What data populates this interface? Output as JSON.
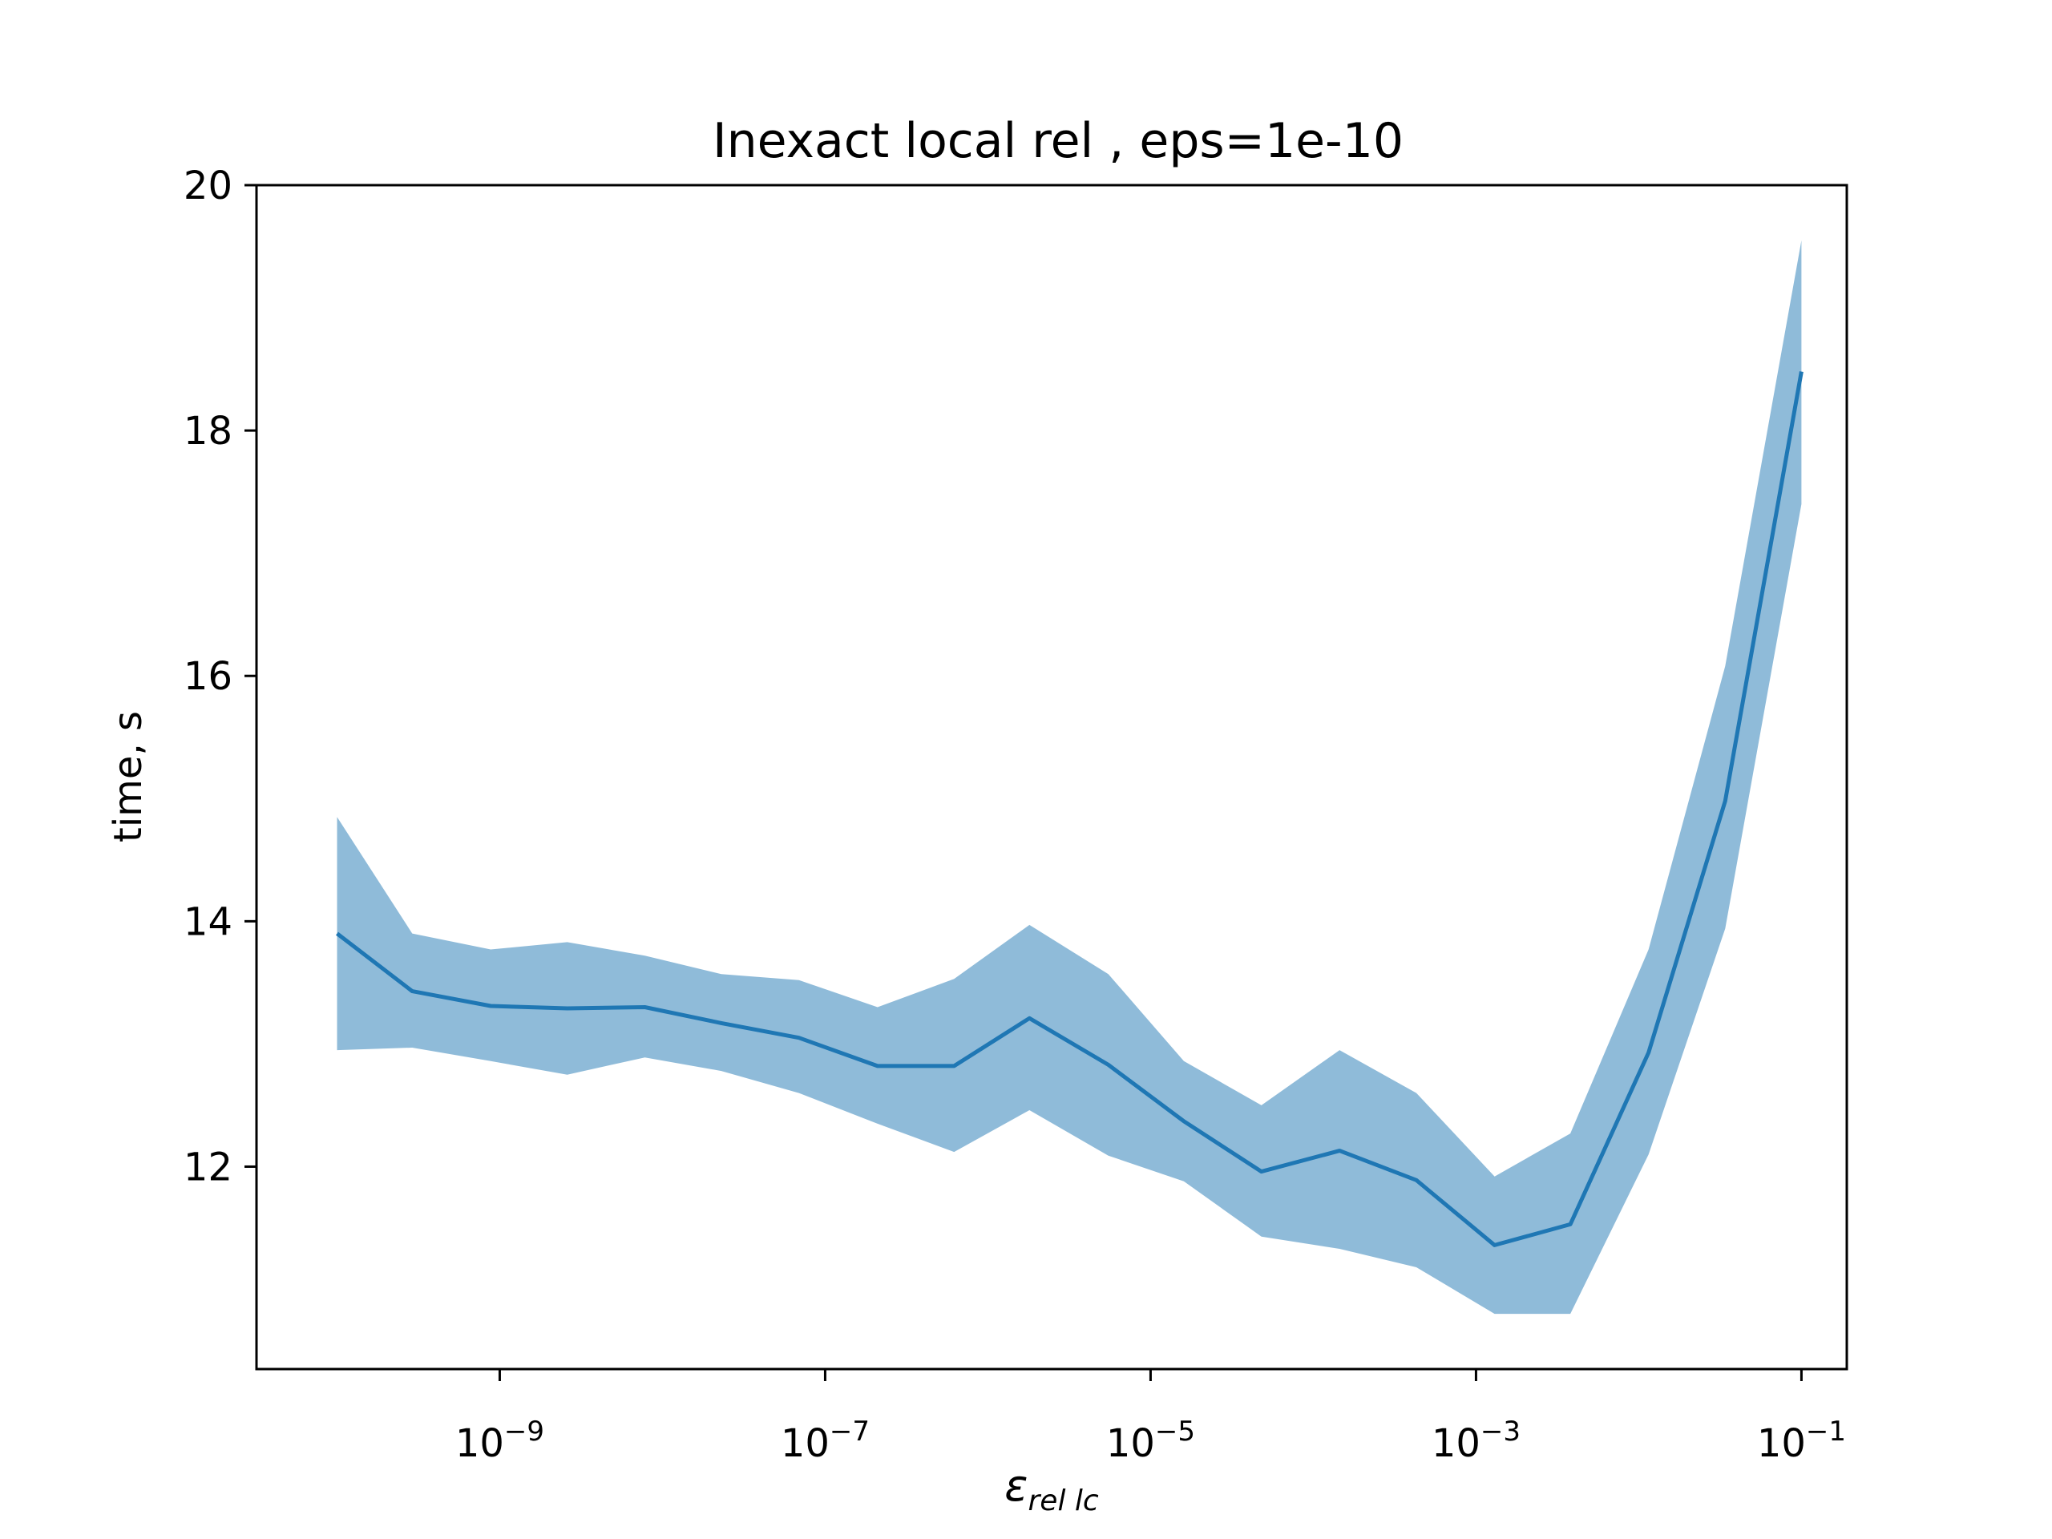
{
  "chart_data": {
    "type": "line",
    "title": "Inexact local rel , eps=1e-10",
    "xlabel": {
      "symbol": "ε",
      "subscript": "rel lc"
    },
    "ylabel": "time, s",
    "xscale": "log",
    "xlim": [
      3.2e-11,
      0.19
    ],
    "ylim": [
      10.35,
      20
    ],
    "xticks": [
      {
        "value": 1e-09,
        "base": "10",
        "exp": "−9"
      },
      {
        "value": 1e-07,
        "base": "10",
        "exp": "−7"
      },
      {
        "value": 1e-05,
        "base": "10",
        "exp": "−5"
      },
      {
        "value": 0.001,
        "base": "10",
        "exp": "−3"
      },
      {
        "value": 0.1,
        "base": "10",
        "exp": "−1"
      }
    ],
    "yticks": [
      "12",
      "14",
      "16",
      "18",
      "20"
    ],
    "grid": false,
    "legend": "none",
    "colors": {
      "line": "#1f77b4",
      "band": "#1f77b4",
      "band_alpha": 0.5
    },
    "series": [
      {
        "x": [
          1e-10,
          2.9e-10,
          8.8e-10,
          2.6e-09,
          7.8e-09,
          2.3e-08,
          6.9e-08,
          2.1e-07,
          6.2e-07,
          1.8e-06,
          5.5e-06,
          1.6e-05,
          4.8e-05,
          0.000145,
          0.00043,
          0.0013,
          0.0038,
          0.0115,
          0.034,
          0.1
        ],
        "mean": [
          13.9,
          13.43,
          13.31,
          13.29,
          13.3,
          13.17,
          13.05,
          12.82,
          12.82,
          13.21,
          12.83,
          12.37,
          11.96,
          12.13,
          11.89,
          11.36,
          11.53,
          12.93,
          14.98,
          18.48
        ],
        "upper": [
          14.85,
          13.9,
          13.77,
          13.83,
          13.72,
          13.57,
          13.52,
          13.3,
          13.53,
          13.97,
          13.57,
          12.86,
          12.5,
          12.95,
          12.6,
          11.92,
          12.27,
          13.77,
          16.08,
          19.55
        ],
        "lower": [
          12.95,
          12.97,
          12.86,
          12.75,
          12.89,
          12.78,
          12.6,
          12.35,
          12.12,
          12.46,
          12.09,
          11.88,
          11.43,
          11.33,
          11.18,
          10.8,
          10.8,
          12.1,
          13.94,
          17.4
        ]
      }
    ]
  }
}
